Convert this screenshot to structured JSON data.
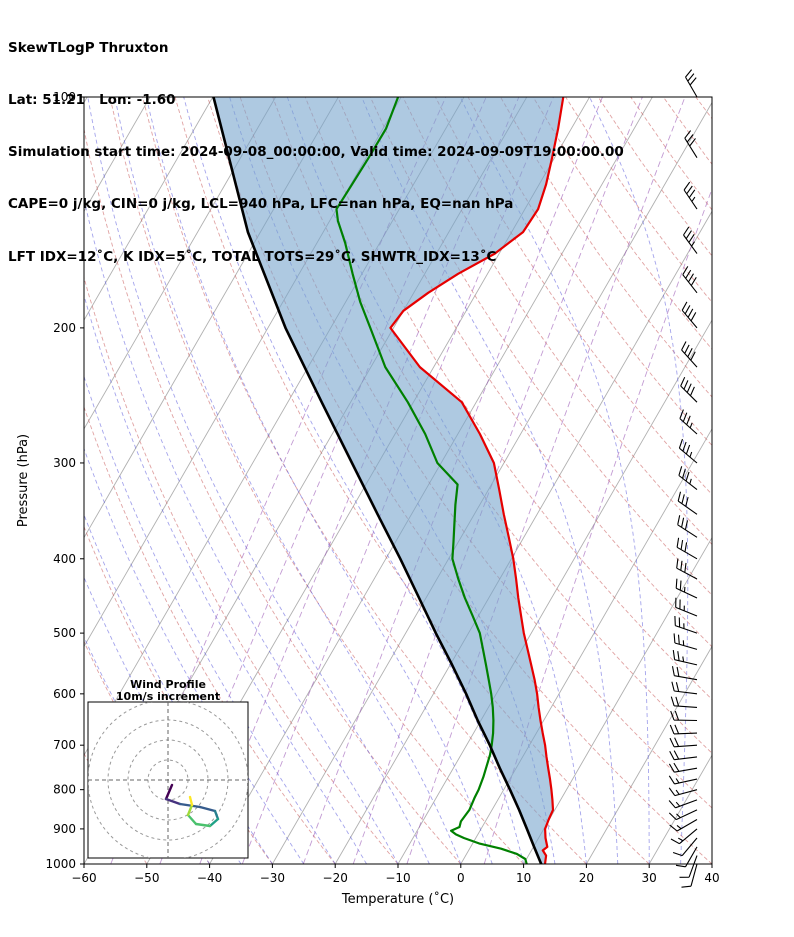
{
  "header": {
    "line1": "SkewTLogP Thruxton",
    "line2": "Lat: 51.21   Lon: -1.60",
    "line3": "Simulation start time: 2024-09-08_00:00:00, Valid time: 2024-09-09T19:00:00.00",
    "line4": "CAPE=0 j/kg, CIN=0 j/kg, LCL=940 hPa, LFC=nan hPa, EQ=nan hPa",
    "line5": "LFT IDX=12˚C, K IDX=5˚C, TOTAL TOTS=29˚C, SHWTR_IDX=13˚C"
  },
  "axes": {
    "xlabel": "Temperature (˚C)",
    "ylabel": "Pressure (hPa)",
    "x_range": [
      -60,
      40
    ],
    "x_ticks": [
      -60,
      -50,
      -40,
      -30,
      -20,
      -10,
      0,
      10,
      20,
      30,
      40
    ],
    "y_ticks": [
      100,
      200,
      300,
      400,
      500,
      600,
      700,
      800,
      900,
      1000
    ]
  },
  "inset": {
    "title_line1": "Wind Profile",
    "title_line2": "10m/s increment"
  },
  "colors": {
    "temperature": "#e60000",
    "dewpoint": "#008000",
    "parcel": "#000000",
    "shading": "#78a5cd",
    "isotherm": "#b0b0b0",
    "dry_adiabat": "#cc6666",
    "moist_adiabat": "#5a5adc",
    "mixing_ratio": "#9b59b6",
    "axis": "#000000",
    "barb": "#000000",
    "hodograph_ring": "#999999",
    "hodograph_cross": "#666666",
    "viridis": [
      "#440154",
      "#46327e",
      "#365c8d",
      "#277f8e",
      "#1fa187",
      "#4ac16d",
      "#a0da39",
      "#fde725"
    ]
  },
  "chart_data": {
    "type": "line",
    "title": "SkewTLogP Thruxton",
    "xlabel": "Temperature (˚C)",
    "ylabel": "Pressure (hPa)",
    "x_range_c": [
      -60,
      40
    ],
    "pressure_range_hpa": [
      100,
      1000
    ],
    "skew_angle_deg": 30,
    "grid": true,
    "series": [
      {
        "name": "temperature",
        "color": "#e60000",
        "points_p_t": [
          [
            1000,
            13.4
          ],
          [
            975,
            12.8
          ],
          [
            960,
            11.8
          ],
          [
            950,
            12.2
          ],
          [
            925,
            11.1
          ],
          [
            900,
            10.2
          ],
          [
            875,
            9.9
          ],
          [
            850,
            9.7
          ],
          [
            825,
            8.7
          ],
          [
            800,
            7.6
          ],
          [
            775,
            6.4
          ],
          [
            750,
            5.1
          ],
          [
            725,
            3.8
          ],
          [
            700,
            2.5
          ],
          [
            675,
            1.0
          ],
          [
            650,
            -0.5
          ],
          [
            625,
            -2.0
          ],
          [
            600,
            -3.5
          ],
          [
            575,
            -5.2
          ],
          [
            550,
            -7.1
          ],
          [
            525,
            -9.1
          ],
          [
            500,
            -11.2
          ],
          [
            475,
            -13.2
          ],
          [
            450,
            -15.3
          ],
          [
            425,
            -17.4
          ],
          [
            400,
            -19.7
          ],
          [
            375,
            -22.4
          ],
          [
            350,
            -25.3
          ],
          [
            325,
            -28.3
          ],
          [
            300,
            -31.6
          ],
          [
            275,
            -36.5
          ],
          [
            250,
            -42.3
          ],
          [
            225,
            -52.2
          ],
          [
            200,
            -60.5
          ],
          [
            190,
            -60.0
          ],
          [
            180,
            -57.7
          ],
          [
            170,
            -54.7
          ],
          [
            160,
            -50.7
          ],
          [
            150,
            -48.2
          ],
          [
            140,
            -47.9
          ],
          [
            130,
            -48.9
          ],
          [
            120,
            -50.4
          ],
          [
            110,
            -52.1
          ],
          [
            100,
            -54.2
          ]
        ]
      },
      {
        "name": "dewpoint",
        "color": "#008000",
        "points_p_t": [
          [
            1000,
            10.5
          ],
          [
            985,
            9.8
          ],
          [
            970,
            8.0
          ],
          [
            955,
            5.0
          ],
          [
            940,
            1.0
          ],
          [
            925,
            -1.9
          ],
          [
            915,
            -3.5
          ],
          [
            905,
            -4.6
          ],
          [
            895,
            -3.6
          ],
          [
            880,
            -3.9
          ],
          [
            850,
            -3.6
          ],
          [
            820,
            -3.9
          ],
          [
            800,
            -4.0
          ],
          [
            770,
            -4.4
          ],
          [
            750,
            -4.8
          ],
          [
            720,
            -5.4
          ],
          [
            700,
            -6.0
          ],
          [
            675,
            -6.9
          ],
          [
            650,
            -8.0
          ],
          [
            625,
            -9.3
          ],
          [
            600,
            -10.8
          ],
          [
            575,
            -12.5
          ],
          [
            550,
            -14.3
          ],
          [
            525,
            -16.2
          ],
          [
            500,
            -18.2
          ],
          [
            475,
            -20.9
          ],
          [
            450,
            -23.8
          ],
          [
            425,
            -26.6
          ],
          [
            400,
            -29.4
          ],
          [
            380,
            -30.8
          ],
          [
            360,
            -32.3
          ],
          [
            340,
            -33.9
          ],
          [
            320,
            -35.4
          ],
          [
            300,
            -40.6
          ],
          [
            275,
            -45.2
          ],
          [
            250,
            -50.9
          ],
          [
            225,
            -57.7
          ],
          [
            200,
            -63.7
          ],
          [
            185,
            -67.7
          ],
          [
            170,
            -71.5
          ],
          [
            155,
            -75.5
          ],
          [
            145,
            -78.7
          ],
          [
            140,
            -80.0
          ],
          [
            130,
            -79.8
          ],
          [
            120,
            -79.6
          ],
          [
            110,
            -79.5
          ],
          [
            100,
            -80.5
          ]
        ]
      },
      {
        "name": "parcel",
        "color": "#000000",
        "points_p_t": [
          [
            1000,
            12.8
          ],
          [
            950,
            10.1
          ],
          [
            900,
            7.3
          ],
          [
            850,
            4.3
          ],
          [
            800,
            1.0
          ],
          [
            750,
            -2.6
          ],
          [
            700,
            -6.3
          ],
          [
            650,
            -10.5
          ],
          [
            600,
            -14.8
          ],
          [
            550,
            -19.7
          ],
          [
            500,
            -25.2
          ],
          [
            450,
            -31.1
          ],
          [
            400,
            -37.7
          ],
          [
            350,
            -45.4
          ],
          [
            300,
            -54.2
          ],
          [
            250,
            -64.6
          ],
          [
            200,
            -77.2
          ],
          [
            150,
            -92.0
          ],
          [
            100,
            -109.9
          ]
        ]
      }
    ],
    "cin_shading": {
      "between": [
        "parcel",
        "temperature"
      ],
      "color": "#78a5cd",
      "opacity": 0.6
    },
    "background_lines": {
      "isotherms_c": {
        "from": -150,
        "to": 40,
        "step": 10
      },
      "dry_adiabats_c": {
        "from": -60,
        "to": 200,
        "step": 10
      },
      "moist_adiabats_c": {
        "from": -40,
        "to": 40,
        "step": 5
      },
      "mixing_ratio_g_kg": {
        "values": [
          0.02,
          0.05,
          0.1,
          0.2,
          0.5,
          1,
          2,
          5
        ]
      }
    },
    "wind_barbs_p_dir_kt": [
      [
        1000,
        195,
        10
      ],
      [
        975,
        200,
        10
      ],
      [
        950,
        210,
        10
      ],
      [
        925,
        220,
        12
      ],
      [
        900,
        230,
        13
      ],
      [
        875,
        240,
        15
      ],
      [
        850,
        245,
        15
      ],
      [
        825,
        250,
        15
      ],
      [
        800,
        255,
        16
      ],
      [
        775,
        258,
        17
      ],
      [
        750,
        260,
        18
      ],
      [
        725,
        263,
        18
      ],
      [
        700,
        266,
        19
      ],
      [
        675,
        268,
        20
      ],
      [
        650,
        271,
        20
      ],
      [
        625,
        274,
        21
      ],
      [
        600,
        277,
        22
      ],
      [
        575,
        280,
        22
      ],
      [
        550,
        283,
        23
      ],
      [
        525,
        286,
        24
      ],
      [
        500,
        289,
        25
      ],
      [
        475,
        292,
        26
      ],
      [
        450,
        295,
        27
      ],
      [
        425,
        298,
        28
      ],
      [
        400,
        300,
        30
      ],
      [
        375,
        303,
        31
      ],
      [
        350,
        305,
        32
      ],
      [
        325,
        308,
        33
      ],
      [
        300,
        310,
        35
      ],
      [
        275,
        312,
        36
      ],
      [
        250,
        315,
        38
      ],
      [
        225,
        318,
        39
      ],
      [
        200,
        320,
        40
      ],
      [
        180,
        322,
        38
      ],
      [
        160,
        324,
        36
      ],
      [
        140,
        326,
        34
      ],
      [
        120,
        328,
        32
      ],
      [
        100,
        330,
        30
      ]
    ],
    "hodograph": {
      "ring_interval_ms": 10,
      "rings_ms": [
        10,
        20,
        30,
        40
      ],
      "trace_uv_ms": [
        [
          2,
          -2.5
        ],
        [
          -1,
          -9.5
        ],
        [
          6,
          -12
        ],
        [
          16,
          -13.5
        ],
        [
          23.5,
          -15.5
        ],
        [
          25,
          -19.5
        ],
        [
          21,
          -23
        ],
        [
          14,
          -22
        ],
        [
          10,
          -17.5
        ],
        [
          12,
          -12.5
        ],
        [
          11,
          -8.5
        ]
      ]
    }
  }
}
